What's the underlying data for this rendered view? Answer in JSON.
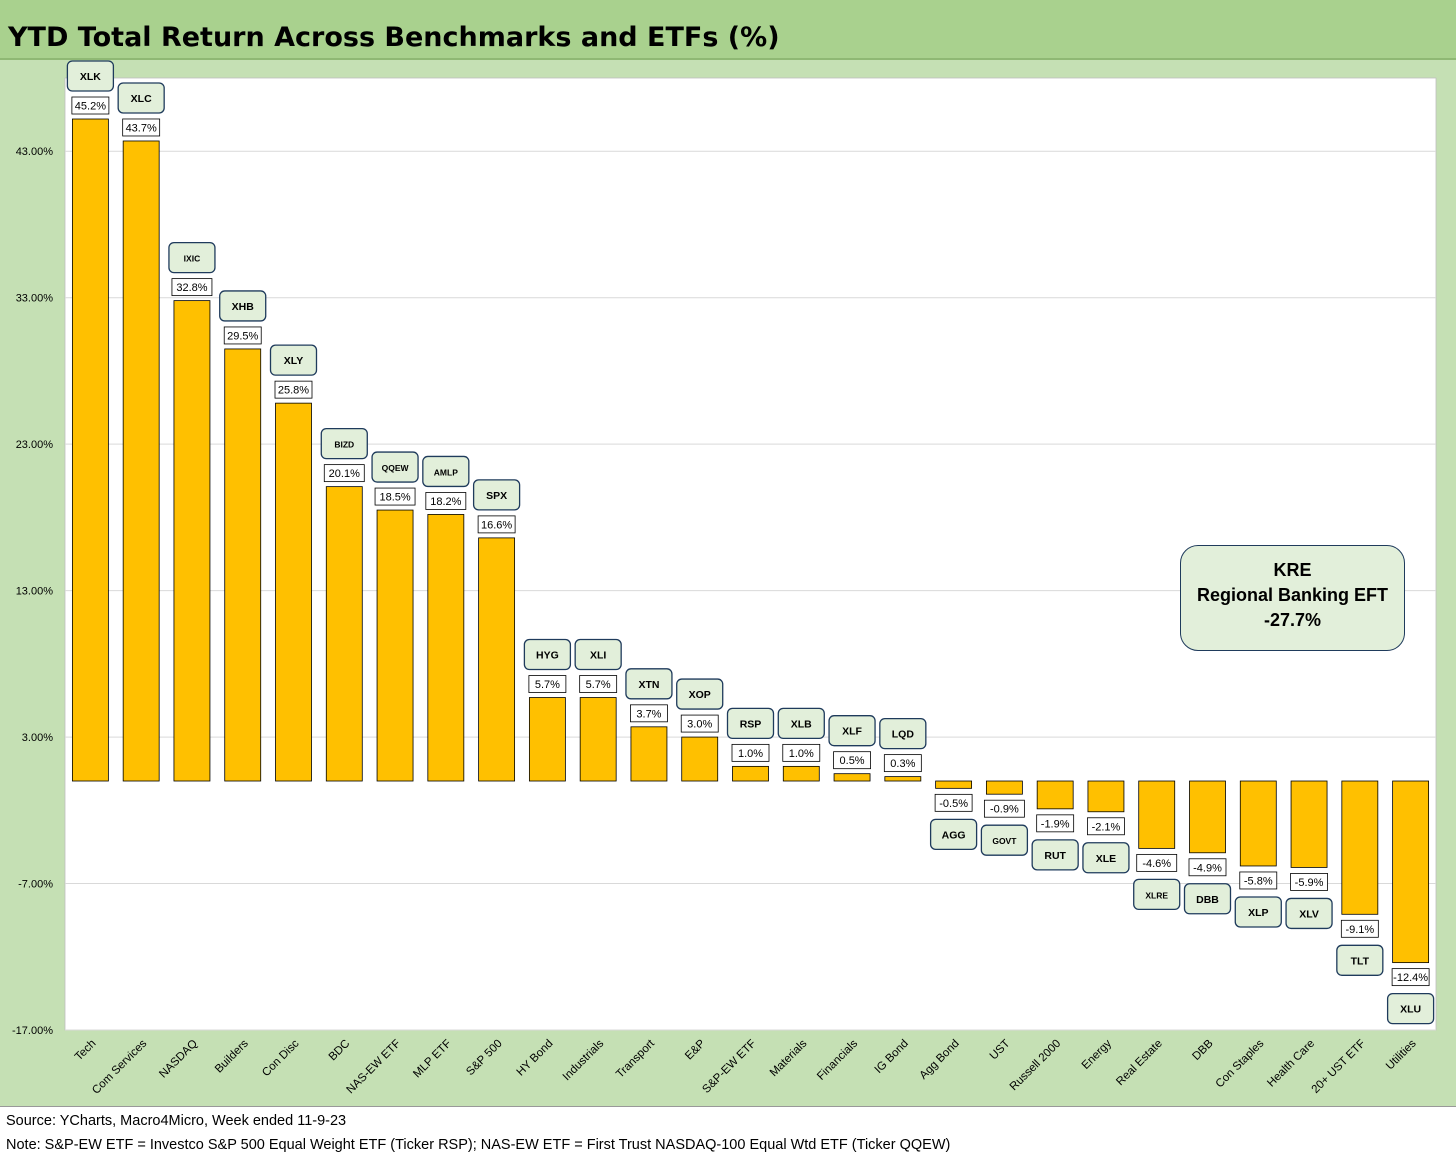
{
  "title": "YTD Total Return Across Benchmarks and ETFs (%)",
  "footer": {
    "source": "Source: YCharts, Macro4Micro, Week ended 11-9-23",
    "note": "Note: S&P-EW ETF = Investco S&P 500 Equal Weight ETF (Ticker RSP); NAS-EW ETF = First Trust NASDAQ-100 Equal Wtd ETF (Ticker QQEW)"
  },
  "callout": {
    "ticker": "KRE",
    "name": "Regional Banking EFT",
    "value": "-27.7%"
  },
  "colors": {
    "bar": "#ffc000",
    "plot_bg": "#ffffff",
    "outer_bg": "#c5e0b4",
    "ticker_box": "#e2efda",
    "ticker_border": "#1f3b5c",
    "title_bar": "#a9d18e"
  },
  "chart_data": {
    "type": "bar",
    "title": "YTD Total Return Across Benchmarks and ETFs (%)",
    "ylim": [
      -17,
      48
    ],
    "yticks": [
      -17,
      -7,
      3,
      13,
      23,
      33,
      43
    ],
    "ytick_labels": [
      "-17.00%",
      "-7.00%",
      "3.00%",
      "13.00%",
      "23.00%",
      "33.00%",
      "43.00%"
    ],
    "grid": true,
    "categories": [
      "Tech",
      "Com Services",
      "NASDAQ",
      "Builders",
      "Con Disc",
      "BDC",
      "NAS-EW ETF",
      "MLP ETF",
      "S&P 500",
      "HY Bond",
      "Industrials",
      "Transport",
      "E&P",
      "S&P-EW ETF",
      "Materials",
      "Financials",
      "IG Bond",
      "Agg Bond",
      "UST",
      "Russell 2000",
      "Energy",
      "Real Estate",
      "DBB",
      "Con Staples",
      "Health Care",
      "20+ UST ETF",
      "Utilities"
    ],
    "tickers": [
      "XLK",
      "XLC",
      "IXIC",
      "XHB",
      "XLY",
      "BIZD",
      "QQEW",
      "AMLP",
      "SPX",
      "HYG",
      "XLI",
      "XTN",
      "XOP",
      "RSP",
      "XLB",
      "XLF",
      "LQD",
      "AGG",
      "GOVT",
      "RUT",
      "XLE",
      "XLRE",
      "DBB",
      "XLP",
      "XLV",
      "TLT",
      "XLU"
    ],
    "values": [
      45.2,
      43.7,
      32.8,
      29.5,
      25.8,
      20.1,
      18.5,
      18.2,
      16.6,
      5.7,
      5.7,
      3.7,
      3.0,
      1.0,
      1.0,
      0.5,
      0.3,
      -0.5,
      -0.9,
      -1.9,
      -2.1,
      -4.6,
      -4.9,
      -5.8,
      -5.9,
      -9.1,
      -12.4
    ],
    "value_labels": [
      "45.2%",
      "43.7%",
      "32.8%",
      "29.5%",
      "25.8%",
      "20.1%",
      "18.5%",
      "18.2%",
      "16.6%",
      "5.7%",
      "5.7%",
      "3.7%",
      "3.0%",
      "1.0%",
      "1.0%",
      "0.5%",
      "0.3%",
      "-0.5%",
      "-0.9%",
      "-1.9%",
      "-2.1%",
      "-4.6%",
      "-4.9%",
      "-5.8%",
      "-5.9%",
      "-9.1%",
      "-12.4%"
    ]
  }
}
